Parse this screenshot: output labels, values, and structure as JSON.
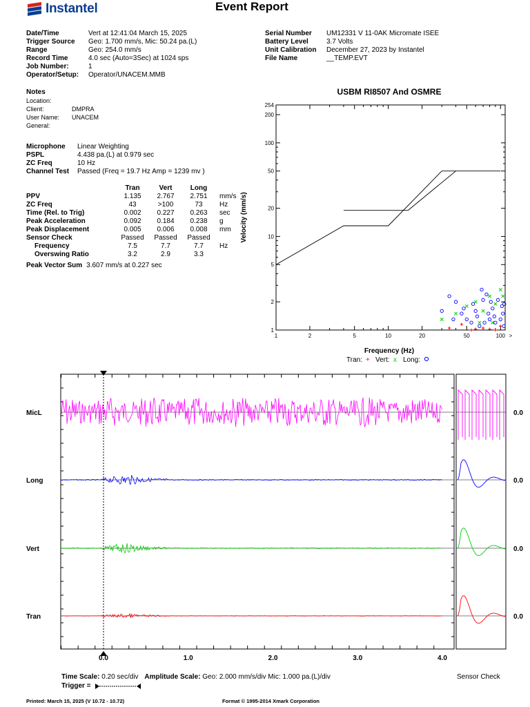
{
  "header": {
    "brand": "Instantel",
    "title": "Event Report"
  },
  "info_left": [
    {
      "key": "Date/Time",
      "value": "Vert at 12:41:04 March 15, 2025"
    },
    {
      "key": "Trigger Source",
      "value": "Geo: 1.700 mm/s, Mic: 50.24 pa.(L)"
    },
    {
      "key": "Range",
      "value": "Geo: 254.0 mm/s"
    },
    {
      "key": "Record Time",
      "value": "4.0 sec (Auto=3Sec) at 1024 sps"
    },
    {
      "key": "Job Number:",
      "value": "1"
    },
    {
      "key": "Operator/Setup:",
      "value": "Operator/UNACEM.MMB"
    }
  ],
  "info_right": [
    {
      "key": "Serial Number",
      "value": "UM12331 V 11-0AK Micromate ISEE"
    },
    {
      "key": "Battery Level",
      "value": "3.7 Volts"
    },
    {
      "key": "Unit Calibration",
      "value": "December 27, 2023 by Instantel"
    },
    {
      "key": "File Name",
      "value": "__TEMP.EVT"
    }
  ],
  "notes": {
    "heading": "Notes",
    "location_label": "Location:",
    "client_label": "Client:",
    "client_value": "DMPRA",
    "user_label": "User Name:",
    "user_value": "UNACEM",
    "general_label": "General:"
  },
  "microphone": [
    {
      "key": "Microphone",
      "value": "Linear Weighting"
    },
    {
      "key": "PSPL",
      "value": "4.438 pa.(L) at 0.979 sec"
    },
    {
      "key": "ZC Freq",
      "value": "10 Hz"
    },
    {
      "key": "Channel Test",
      "value": "Passed (Freq = 19.7 Hz Amp = 1239 mv )"
    }
  ],
  "stats": {
    "headers": [
      "Tran",
      "Vert",
      "Long"
    ],
    "rows": [
      {
        "label": "PPV",
        "values": [
          "1.135",
          "2.767",
          "2.751"
        ],
        "unit": "mm/s"
      },
      {
        "label": "ZC Freq",
        "values": [
          "43",
          ">100",
          "73"
        ],
        "unit": "Hz"
      },
      {
        "label": "Time (Rel. to Trig)",
        "values": [
          "0.002",
          "0.227",
          "0.263"
        ],
        "unit": "sec"
      },
      {
        "label": "Peak Acceleration",
        "values": [
          "0.092",
          "0.184",
          "0.238"
        ],
        "unit": "g"
      },
      {
        "label": "Peak Displacement",
        "values": [
          "0.005",
          "0.006",
          "0.008"
        ],
        "unit": "mm"
      },
      {
        "label": "Sensor Check",
        "values": [
          "Passed",
          "Passed",
          "Passed"
        ],
        "unit": ""
      },
      {
        "label": "Frequency",
        "values": [
          "7.5",
          "7.7",
          "7.7"
        ],
        "unit": "Hz"
      },
      {
        "label": "Overswing Ratio",
        "values": [
          "3.2",
          "2.9",
          "3.3"
        ],
        "unit": ""
      }
    ],
    "pvs_label": "Peak Vector Sum",
    "pvs_value": "3.607 mm/s at 0.227 sec"
  },
  "chart_data": [
    {
      "type": "scatter",
      "title": "USBM RI8507 And OSMRE",
      "xlabel": "Frequency (Hz)",
      "ylabel": "Velocity (mm/s)",
      "x_scale": "log",
      "y_scale": "log",
      "xlim": [
        1,
        100
      ],
      "ylim": [
        1,
        254
      ],
      "x_ticks": [
        "1",
        "2",
        "5",
        "10",
        "20",
        "50",
        "100",
        ">"
      ],
      "y_ticks": [
        "254",
        "200",
        "100",
        "50",
        "20",
        "10",
        "5",
        "2",
        "1"
      ],
      "limit_curves": [
        {
          "x": [
            1,
            4,
            10,
            30,
            100
          ],
          "y": [
            5,
            13,
            13,
            50,
            50
          ]
        },
        {
          "x": [
            4,
            15,
            40
          ],
          "y": [
            19,
            19,
            50
          ]
        }
      ],
      "legend": {
        "text": "Tran: + Vert: x Long: o",
        "placement": "bottom"
      },
      "series": [
        {
          "name": "Tran",
          "marker": "+",
          "color": "#ff0000",
          "points": [
            [
              35,
              1.05
            ],
            [
              45,
              1.15
            ],
            [
              55,
              1.0
            ],
            [
              70,
              1.05
            ],
            [
              90,
              1.0
            ],
            [
              100,
              1.1
            ],
            [
              60,
              1.02
            ],
            [
              80,
              1.02
            ]
          ]
        },
        {
          "name": "Vert",
          "marker": "x",
          "color": "#00cc00",
          "points": [
            [
              30,
              1.3
            ],
            [
              40,
              1.5
            ],
            [
              50,
              1.8
            ],
            [
              60,
              2.0
            ],
            [
              70,
              1.6
            ],
            [
              80,
              2.3
            ],
            [
              90,
              1.9
            ],
            [
              100,
              2.7
            ],
            [
              105,
              2.3
            ],
            [
              65,
              1.2
            ],
            [
              85,
              1.2
            ]
          ]
        },
        {
          "name": "Long",
          "marker": "o",
          "color": "#0000ff",
          "points": [
            [
              30,
              1.6
            ],
            [
              35,
              2.3
            ],
            [
              38,
              1.3
            ],
            [
              40,
              2.0
            ],
            [
              45,
              1.5
            ],
            [
              47,
              1.7
            ],
            [
              50,
              1.3
            ],
            [
              55,
              1.2
            ],
            [
              57,
              1.9
            ],
            [
              60,
              1.6
            ],
            [
              62,
              1.4
            ],
            [
              65,
              1.1
            ],
            [
              68,
              2.7
            ],
            [
              70,
              2.1
            ],
            [
              72,
              1.2
            ],
            [
              75,
              2.4
            ],
            [
              78,
              1.5
            ],
            [
              80,
              1.3
            ],
            [
              82,
              2.0
            ],
            [
              85,
              1.7
            ],
            [
              88,
              1.4
            ],
            [
              90,
              1.2
            ],
            [
              95,
              2.1
            ],
            [
              100,
              1.3
            ],
            [
              103,
              1.8
            ],
            [
              105,
              1.5
            ],
            [
              107,
              1.1
            ],
            [
              108,
              1.9
            ]
          ]
        }
      ]
    },
    {
      "type": "line",
      "title": "",
      "xlabel": "",
      "ylabel": "",
      "xlim": [
        -0.5,
        4.0
      ],
      "x_ticks": [
        "0.0",
        "1.0",
        "2.0",
        "3.0",
        "4.0"
      ],
      "series": [
        {
          "name": "MicL",
          "color": "#ff00ff",
          "amp": 1.0,
          "envelope": "sustained"
        },
        {
          "name": "Long",
          "color": "#0000ff",
          "amp": 0.55,
          "envelope": "burst"
        },
        {
          "name": "Vert",
          "color": "#00cc00",
          "amp": 0.55,
          "envelope": "burst"
        },
        {
          "name": "Tran",
          "color": "#ff0000",
          "amp": 0.25,
          "envelope": "burst"
        }
      ],
      "sensor_check_values": [
        "0.0",
        "0.0",
        "0.0",
        "0.0"
      ]
    }
  ],
  "waveform_footer": {
    "time_scale_label": "Time Scale:",
    "time_scale_value": "0.20 sec/div",
    "amp_scale_label": "Amplitude Scale:",
    "amp_scale_value": "Geo: 2.000 mm/s/div Mic: 1.000 pa.(L)/div",
    "trigger_label": "Trigger =",
    "sensor_check_label": "Sensor Check"
  },
  "footer": {
    "printed": "Printed: March 15, 2025 (V 10.72 - 10.72)",
    "format": "Format © 1995-2014 Xmark Corporation"
  },
  "colors": {
    "brand": "#0a3d91",
    "mic": "#ff00ff",
    "long": "#0000ff",
    "vert": "#00cc00",
    "tran": "#ff0000"
  }
}
